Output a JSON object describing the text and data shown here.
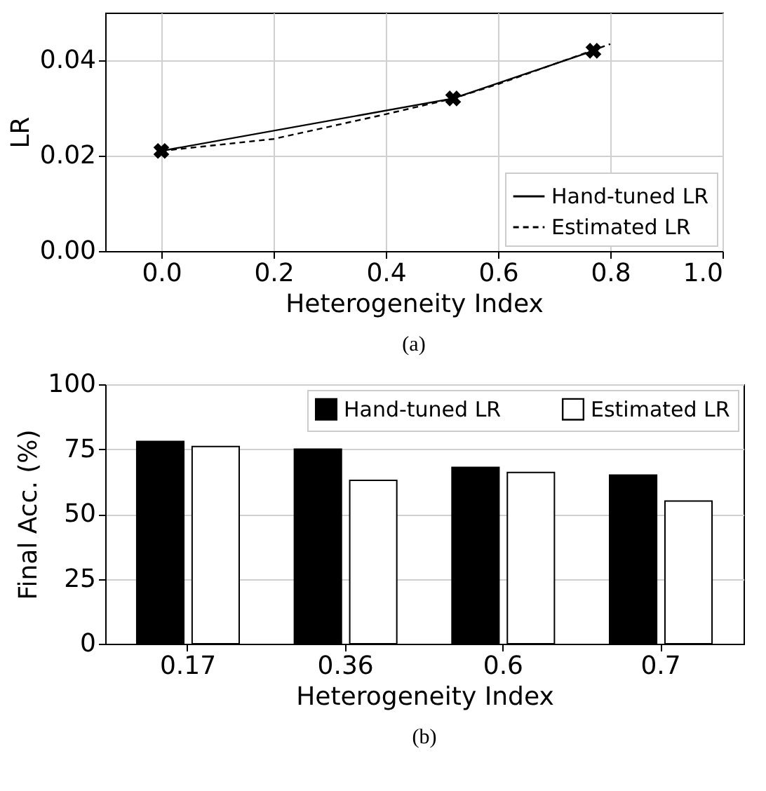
{
  "chart_data": [
    {
      "type": "line",
      "xlabel": "Heterogeneity Index",
      "ylabel": "LR",
      "annotations": [
        "(a)"
      ],
      "xlim": [
        -0.1,
        1.0
      ],
      "xticks": [
        {
          "value": 0,
          "label": "0.0"
        },
        0.2,
        0.4,
        0.6,
        0.8,
        {
          "value": 1,
          "label": "1.0"
        }
      ],
      "ylim": [
        0,
        0.05
      ],
      "yticks": [
        {
          "value": 0,
          "label": "0.00"
        },
        0.02,
        0.04
      ],
      "grid": true,
      "legend": "bottom right",
      "series": [
        {
          "name": "Hand-tuned LR",
          "color": "#000000",
          "marker": "cross",
          "line_style": "solid",
          "x": [
            0,
            0.52,
            0.77
          ],
          "values": [
            0.021,
            0.032,
            0.042
          ]
        },
        {
          "name": "Estimated LR",
          "color": "#000000",
          "marker": "none",
          "line_style": "dashed",
          "x": [
            0,
            0.2,
            0.4,
            0.52,
            0.6,
            0.8
          ],
          "values": [
            0.021,
            0.0235,
            0.0287,
            0.032,
            0.035,
            0.0434
          ]
        }
      ]
    },
    {
      "type": "bar",
      "xlabel": "Heterogeneity Index",
      "ylabel": "Final Acc. (%)",
      "annotations": [
        "(b)"
      ],
      "categories": [
        "0.17",
        "0.36",
        "0.6",
        "0.7"
      ],
      "ylim": [
        0,
        100
      ],
      "yticks": [
        0,
        25,
        50,
        75,
        100
      ],
      "grid": "y",
      "legend": "top right",
      "series": [
        {
          "name": "Hand-tuned LR",
          "color": "#000000",
          "values": [
            78,
            75,
            68,
            65
          ]
        },
        {
          "name": "Estimated LR",
          "color": "#ffffff",
          "values": [
            76,
            63,
            66,
            55
          ]
        }
      ]
    }
  ]
}
